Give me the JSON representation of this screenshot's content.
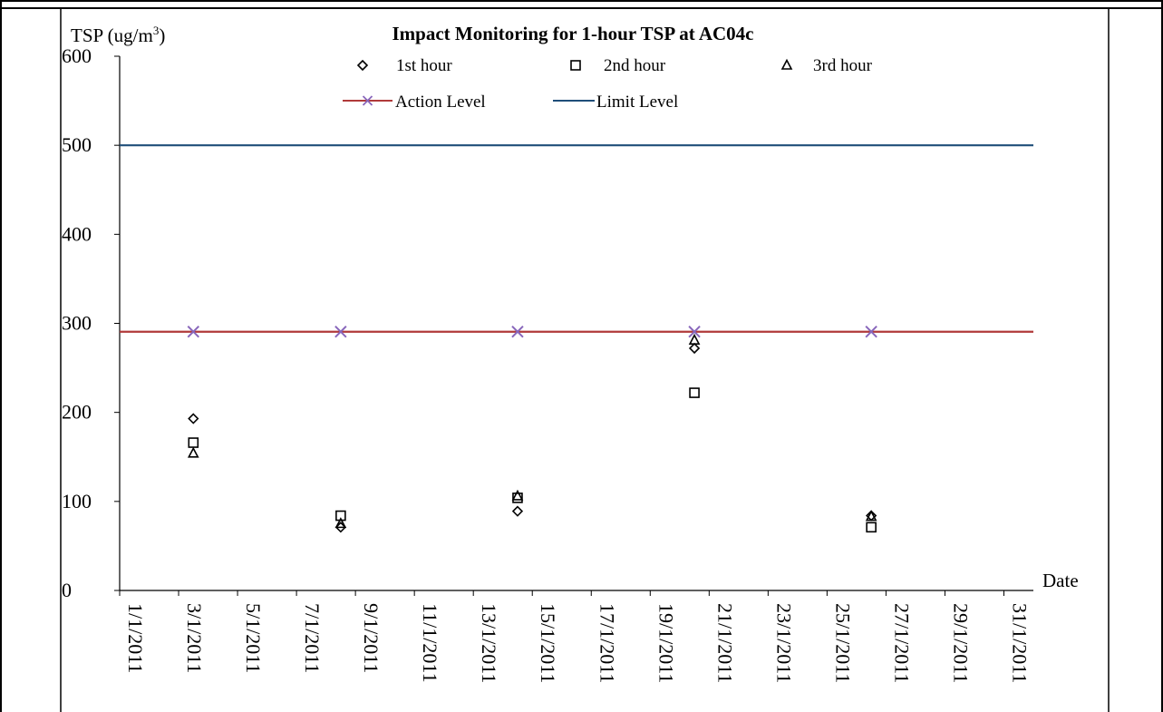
{
  "chart_data": {
    "type": "scatter",
    "title": "Impact Monitoring for 1-hour TSP at AC04c",
    "ylabel": "TSP (ug/m",
    "ylabel_sup": "3",
    "ylabel_close": ")",
    "xlabel": "Date",
    "ylim": [
      0,
      600
    ],
    "yticks": [
      0,
      100,
      200,
      300,
      400,
      500,
      600
    ],
    "xlim": [
      "1/1/2011",
      "31/1/2011"
    ],
    "xticks": [
      "1/1/2011",
      "3/1/2011",
      "5/1/2011",
      "7/1/2011",
      "9/1/2011",
      "11/1/2011",
      "13/1/2011",
      "15/1/2011",
      "17/1/2011",
      "19/1/2011",
      "21/1/2011",
      "23/1/2011",
      "25/1/2011",
      "27/1/2011",
      "29/1/2011",
      "31/1/2011"
    ],
    "series": [
      {
        "name": "1st hour",
        "marker": "diamond",
        "x": [
          "3/1/2011",
          "8/1/2011",
          "14/1/2011",
          "20/1/2011",
          "26/1/2011"
        ],
        "y": [
          193,
          71,
          89,
          272,
          84
        ]
      },
      {
        "name": "2nd hour",
        "marker": "square",
        "x": [
          "3/1/2011",
          "8/1/2011",
          "14/1/2011",
          "20/1/2011",
          "26/1/2011"
        ],
        "y": [
          166,
          84,
          104,
          222,
          71
        ]
      },
      {
        "name": "3rd hour",
        "marker": "triangle",
        "x": [
          "3/1/2011",
          "8/1/2011",
          "14/1/2011",
          "20/1/2011",
          "26/1/2011"
        ],
        "y": [
          154,
          75,
          106,
          281,
          83
        ]
      }
    ],
    "lines": [
      {
        "name": "Action Level",
        "y": 290.6,
        "color": "#b03a3a",
        "marker": "x",
        "marker_color": "#8866bb",
        "marker_x": [
          "3/1/2011",
          "8/1/2011",
          "14/1/2011",
          "20/1/2011",
          "26/1/2011"
        ]
      },
      {
        "name": "Limit Level",
        "y": 500,
        "color": "#1f4e79"
      }
    ],
    "grid": false,
    "legend_position": "top"
  }
}
